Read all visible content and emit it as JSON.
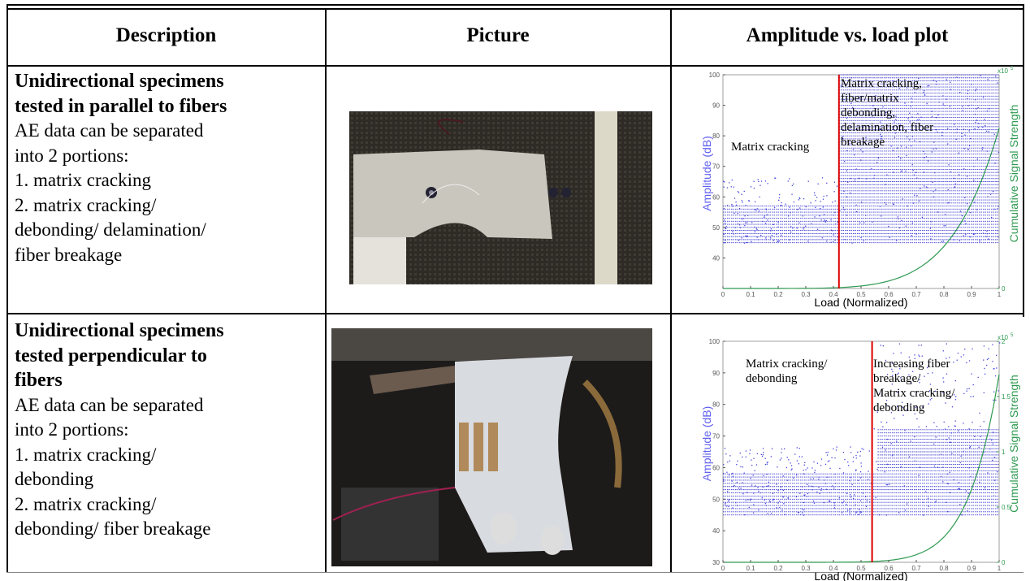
{
  "table": {
    "headers": [
      "Description",
      "Picture",
      "Amplitude vs. load plot"
    ],
    "rows": [
      {
        "title": [
          "Unidirectional specimens",
          "tested in parallel to fibers"
        ],
        "lines": [
          "AE data can be separated",
          "into 2 portions:",
          "1. matrix cracking",
          "2.  matrix cracking/",
          "debonding/ delamination/",
          "fiber breakage"
        ],
        "plot": {
          "x_label": "Load (Normalized)",
          "y_label": "Amplitude (dB)",
          "y2_label": "Cumulative Signal Strength",
          "y2_multiplier": {
            "base": "x10",
            "exp": "5"
          },
          "xlim": [
            0,
            1
          ],
          "xticks": [
            0,
            0.1,
            0.2,
            0.3,
            0.4,
            0.5,
            0.6,
            0.7,
            0.8,
            0.9,
            1
          ],
          "ylim": [
            30,
            100
          ],
          "yticks": [
            40,
            50,
            60,
            70,
            80,
            90,
            100
          ],
          "y2ticks": [
            0
          ],
          "divider": 0.42,
          "annotations": [
            [
              "Matrix cracking"
            ],
            [
              "Matrix cracking,",
              "fiber/matrix",
              "debonding,",
              "delamination, fiber",
              "breakage"
            ]
          ]
        }
      },
      {
        "title": [
          "Unidirectional specimens",
          "tested perpendicular to",
          "fibers"
        ],
        "lines": [
          "AE data can be separated",
          "into 2 portions:",
          "1. matrix cracking/",
          "debonding",
          "2.  matrix cracking/",
          "debonding/ fiber breakage"
        ],
        "plot": {
          "x_label": "Load (Normalized)",
          "y_label": "Amplitude (dB)",
          "y2_label": "Cumulative Signal Strength",
          "y2_multiplier": {
            "base": "x10",
            "exp": "5"
          },
          "xlim": [
            0,
            1
          ],
          "xticks": [
            0,
            0.1,
            0.2,
            0.3,
            0.4,
            0.5,
            0.6,
            0.7,
            0.8,
            0.9,
            1
          ],
          "ylim": [
            30,
            100
          ],
          "yticks": [
            30,
            40,
            50,
            60,
            70,
            80,
            90,
            100
          ],
          "y2lim": [
            0,
            2
          ],
          "y2ticks": [
            0,
            0.5,
            1,
            1.5,
            2
          ],
          "divider": 0.54,
          "annotations": [
            [
              "Matrix cracking/",
              "debonding"
            ],
            [
              "Increasing fiber",
              "breakage/",
              "Matrix cracking/",
              "debonding"
            ]
          ]
        }
      }
    ]
  }
}
